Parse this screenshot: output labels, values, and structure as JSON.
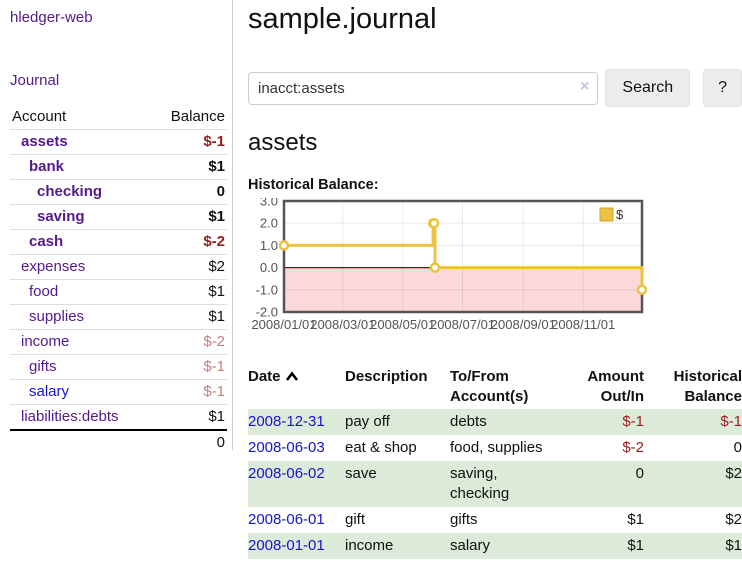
{
  "app": {
    "title": "hledger-web"
  },
  "nav": {
    "journal": "Journal"
  },
  "sidebar": {
    "account_header": "Account",
    "balance_header": "Balance",
    "accounts": [
      {
        "name": "assets",
        "indent": 0,
        "balance": "$-1",
        "bold": true,
        "balance_color": "negative-strong",
        "name_color": "purple"
      },
      {
        "name": "bank",
        "indent": 1,
        "balance": "$1",
        "bold": true,
        "balance_color": "normal",
        "name_color": "purple"
      },
      {
        "name": "checking",
        "indent": 2,
        "balance": "0",
        "bold": true,
        "balance_color": "normal",
        "name_color": "purple"
      },
      {
        "name": "saving",
        "indent": 2,
        "balance": "$1",
        "bold": true,
        "balance_color": "normal",
        "name_color": "purple"
      },
      {
        "name": "cash",
        "indent": 1,
        "balance": "$-2",
        "bold": true,
        "balance_color": "negative-strong",
        "name_color": "purple"
      },
      {
        "name": "expenses",
        "indent": 0,
        "balance": "$2",
        "bold": false,
        "balance_color": "normal",
        "name_color": "purple"
      },
      {
        "name": "food",
        "indent": 1,
        "balance": "$1",
        "bold": false,
        "balance_color": "normal",
        "name_color": "purple"
      },
      {
        "name": "supplies",
        "indent": 1,
        "balance": "$1",
        "bold": false,
        "balance_color": "normal",
        "name_color": "purple"
      },
      {
        "name": "income",
        "indent": 0,
        "balance": "$-2",
        "bold": false,
        "balance_color": "negative-muted",
        "name_color": "purple"
      },
      {
        "name": "gifts",
        "indent": 1,
        "balance": "$-1",
        "bold": false,
        "balance_color": "negative-muted",
        "name_color": "purple"
      },
      {
        "name": "salary",
        "indent": 1,
        "balance": "$-1",
        "bold": false,
        "balance_color": "negative-muted",
        "name_color": "blue"
      },
      {
        "name": "liabilities:debts",
        "indent": 0,
        "balance": "$1",
        "bold": false,
        "balance_color": "normal",
        "name_color": "purple"
      }
    ],
    "total": "0"
  },
  "main": {
    "title": "sample.journal",
    "account_heading": "assets",
    "chart_label": "Historical Balance:"
  },
  "search": {
    "value": "inacct:assets",
    "clear_icon": "×",
    "search_label": "Search",
    "help_label": "?"
  },
  "chart_data": {
    "type": "line",
    "line_style": "step",
    "title": "Historical Balance:",
    "series": [
      {
        "name": "$",
        "color": "#edc240",
        "points": [
          [
            "2008-01-01",
            1
          ],
          [
            "2008-06-01",
            2
          ],
          [
            "2008-06-02",
            2
          ],
          [
            "2008-06-03",
            0
          ],
          [
            "2008-12-31",
            -1
          ]
        ]
      }
    ],
    "xlim": [
      "2008-01-01",
      "2008-12-31"
    ],
    "ylim": [
      -2,
      3
    ],
    "x_tick_dates": [
      "2008-01-01",
      "2008-03-01",
      "2008-05-01",
      "2008-07-01",
      "2008-09-01",
      "2008-11-01"
    ],
    "x_tick_labels": [
      "2008/01/01",
      "2008/03/01",
      "2008/05/01",
      "2008/07/01",
      "2008/09/01",
      "2008/11/01"
    ],
    "y_tick_labels": [
      "3.0",
      "2.0",
      "1.0",
      "0.0",
      "-1.0",
      "-2.0"
    ],
    "grid": true,
    "legend_position": "top-right",
    "legend_label": "$",
    "zero_line_color": "#8b0000",
    "negative_region_color": "#fbd9da",
    "border_color": "#545454",
    "tick_text_color": "#545454"
  },
  "register": {
    "columns": [
      {
        "label": "Date",
        "line2": "",
        "align": "left",
        "sort": "asc"
      },
      {
        "label": "Description",
        "line2": "",
        "align": "left"
      },
      {
        "label": "To/From",
        "line2": "Account(s)",
        "align": "left"
      },
      {
        "label": "Amount",
        "line2": "Out/In",
        "align": "right"
      },
      {
        "label": "Historical",
        "line2": "Balance",
        "align": "right"
      }
    ],
    "rows": [
      {
        "date": "2008-12-31",
        "description": "pay off",
        "accounts": "debts",
        "amount": "$-1",
        "balance": "$-1",
        "amount_negative": true,
        "balance_negative": true
      },
      {
        "date": "2008-06-03",
        "description": "eat & shop",
        "accounts": "food, supplies",
        "amount": "$-2",
        "balance": "0",
        "amount_negative": true,
        "balance_negative": false
      },
      {
        "date": "2008-06-02",
        "description": "save",
        "accounts": "saving, checking",
        "amount": "0",
        "balance": "$2",
        "amount_negative": false,
        "balance_negative": false
      },
      {
        "date": "2008-06-01",
        "description": "gift",
        "accounts": "gifts",
        "amount": "$1",
        "balance": "$2",
        "amount_negative": false,
        "balance_negative": false
      },
      {
        "date": "2008-01-01",
        "description": "income",
        "accounts": "salary",
        "amount": "$1",
        "balance": "$1",
        "amount_negative": false,
        "balance_negative": false
      }
    ]
  }
}
